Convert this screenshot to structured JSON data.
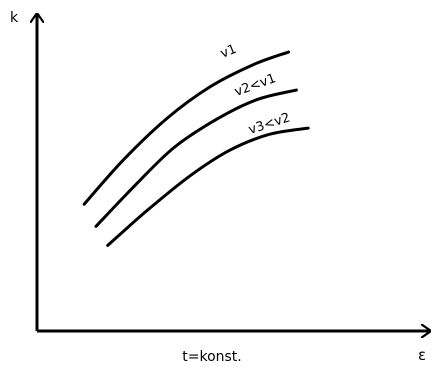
{
  "chart_data": {
    "type": "line",
    "title": "",
    "xlabel": "ε",
    "ylabel": "k",
    "caption": "t=konst.",
    "ticks": "none",
    "grid": false,
    "legend": "none",
    "series": [
      {
        "name": "v1",
        "points": [
          [
            0.12,
            0.4
          ],
          [
            0.22,
            0.54
          ],
          [
            0.33,
            0.67
          ],
          [
            0.44,
            0.77
          ],
          [
            0.55,
            0.84
          ],
          [
            0.64,
            0.88
          ]
        ]
      },
      {
        "name": "v2<v1",
        "points": [
          [
            0.15,
            0.33
          ],
          [
            0.25,
            0.46
          ],
          [
            0.35,
            0.58
          ],
          [
            0.46,
            0.67
          ],
          [
            0.56,
            0.73
          ],
          [
            0.66,
            0.76
          ]
        ]
      },
      {
        "name": "v3<v2",
        "points": [
          [
            0.18,
            0.27
          ],
          [
            0.28,
            0.38
          ],
          [
            0.39,
            0.49
          ],
          [
            0.49,
            0.57
          ],
          [
            0.59,
            0.62
          ],
          [
            0.69,
            0.64
          ]
        ]
      }
    ],
    "xlim": [
      0,
      1
    ],
    "ylim": [
      0,
      1
    ]
  },
  "style": {
    "stroke_color": "#000000",
    "background": "#ffffff"
  }
}
